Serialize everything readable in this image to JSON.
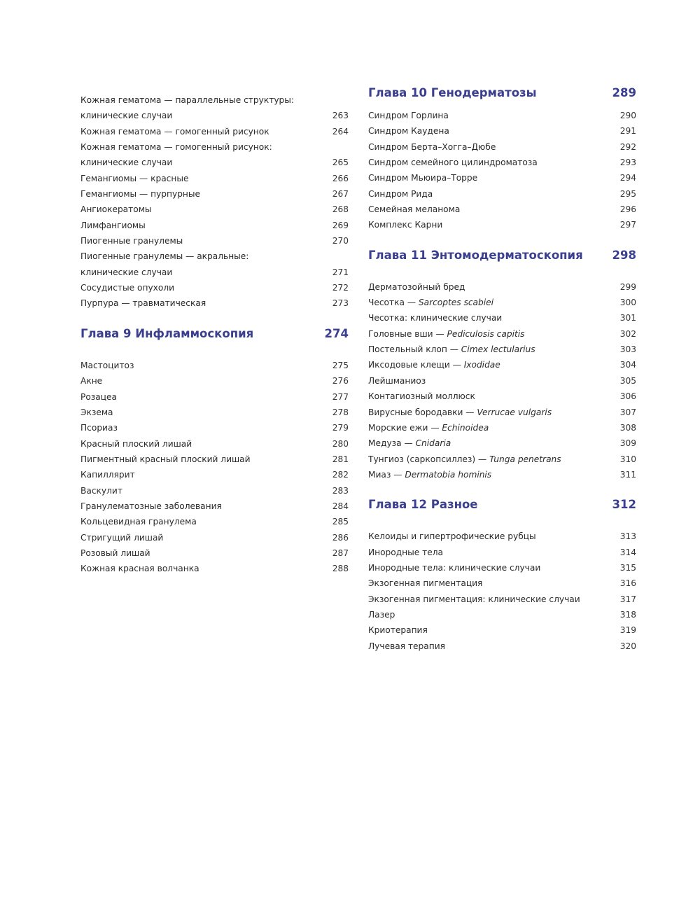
{
  "colors": {
    "heading": "#3b3f8f",
    "text": "#2a2a2a"
  },
  "columns": [
    {
      "sections": [
        {
          "heading": null,
          "entries": [
            {
              "text": "Кожная гематома — параллельные структуры:",
              "italic": "",
              "page": ""
            },
            {
              "text": "клинические случаи",
              "italic": "",
              "page": "263"
            },
            {
              "text": "Кожная гематома — гомогенный рисунок",
              "italic": "",
              "page": "264"
            },
            {
              "text": "Кожная гематома — гомогенный рисунок:",
              "italic": "",
              "page": ""
            },
            {
              "text": "клинические случаи",
              "italic": "",
              "page": "265"
            },
            {
              "text": "Гемангиомы — красные",
              "italic": "",
              "page": "266"
            },
            {
              "text": "Гемангиомы — пурпурные",
              "italic": "",
              "page": "267"
            },
            {
              "text": "Ангиокератомы",
              "italic": "",
              "page": "268"
            },
            {
              "text": "Лимфангиомы",
              "italic": "",
              "page": "269"
            },
            {
              "text": "Пиогенные гранулемы",
              "italic": "",
              "page": "270"
            },
            {
              "text": "Пиогенные гранулемы — акральные:",
              "italic": "",
              "page": ""
            },
            {
              "text": "клинические случаи",
              "italic": "",
              "page": "271"
            },
            {
              "text": "Сосудистые опухоли",
              "italic": "",
              "page": "272"
            },
            {
              "text": "Пурпура — травматическая",
              "italic": "",
              "page": "273"
            }
          ]
        },
        {
          "heading": {
            "title": "Глава 9  Инфламмоскопия",
            "page": "274"
          },
          "entries": [
            {
              "text": "Мастоцитоз",
              "italic": "",
              "page": "275"
            },
            {
              "text": "Акне",
              "italic": "",
              "page": "276"
            },
            {
              "text": "Розацеа",
              "italic": "",
              "page": "277"
            },
            {
              "text": "Экзема",
              "italic": "",
              "page": "278"
            },
            {
              "text": "Псориаз",
              "italic": "",
              "page": "279"
            },
            {
              "text": "Красный плоский лишай",
              "italic": "",
              "page": "280"
            },
            {
              "text": "Пигментный красный плоский лишай",
              "italic": "",
              "page": "281"
            },
            {
              "text": "Капиллярит",
              "italic": "",
              "page": "282"
            },
            {
              "text": "Васкулит",
              "italic": "",
              "page": "283"
            },
            {
              "text": "Гранулематозные заболевания",
              "italic": "",
              "page": "284"
            },
            {
              "text": "Кольцевидная гранулема",
              "italic": "",
              "page": "285"
            },
            {
              "text": "Стригущий лишай",
              "italic": "",
              "page": "286"
            },
            {
              "text": "Розовый лишай",
              "italic": "",
              "page": "287"
            },
            {
              "text": "Кожная красная волчанка",
              "italic": "",
              "page": "288"
            }
          ]
        }
      ]
    },
    {
      "sections": [
        {
          "heading": {
            "title": "Глава 10  Генодерматозы",
            "page": "289"
          },
          "entries": [
            {
              "text": "Синдром Горлина",
              "italic": "",
              "page": "290"
            },
            {
              "text": "Синдром Каудена",
              "italic": "",
              "page": "291"
            },
            {
              "text": "Синдром Берта–Хогга–Дюбе",
              "italic": "",
              "page": "292"
            },
            {
              "text": "Синдром семейного цилиндроматоза",
              "italic": "",
              "page": "293"
            },
            {
              "text": "Синдром Мьюира–Торре",
              "italic": "",
              "page": "294"
            },
            {
              "text": "Синдром Рида",
              "italic": "",
              "page": "295"
            },
            {
              "text": "Семейная меланома",
              "italic": "",
              "page": "296"
            },
            {
              "text": "Комплекс Карни",
              "italic": "",
              "page": "297"
            }
          ]
        },
        {
          "heading": {
            "title": "Глава 11  Энтомодерматоскопия",
            "page": "298"
          },
          "entries": [
            {
              "text": "Дерматозойный бред",
              "italic": "",
              "page": "299"
            },
            {
              "text": "Чесотка — ",
              "italic": "Sarcoptes scabiei",
              "page": "300"
            },
            {
              "text": "Чесотка: клинические случаи",
              "italic": "",
              "page": "301"
            },
            {
              "text": "Головные вши — ",
              "italic": "Pediculosis capitis",
              "page": "302"
            },
            {
              "text": "Постельный клоп — ",
              "italic": "Cimex lectularius",
              "page": "303"
            },
            {
              "text": "Иксодовые клещи — ",
              "italic": "Ixodidae",
              "page": "304"
            },
            {
              "text": "Лейшманиоз",
              "italic": "",
              "page": "305"
            },
            {
              "text": "Контагиозный моллюск",
              "italic": "",
              "page": "306"
            },
            {
              "text": "Вирусные бородавки  — ",
              "italic": "Verrucae vulgaris",
              "page": "307"
            },
            {
              "text": "Морские ежи — ",
              "italic": "Echinoidea",
              "page": "308"
            },
            {
              "text": "Медуза —  ",
              "italic": "Cnidaria",
              "page": "309"
            },
            {
              "text": "Тунгиоз (саркопсиллез) — ",
              "italic": "Tunga penetrans",
              "page": "310"
            },
            {
              "text": "Миаз — ",
              "italic": "Dermatobia hominis",
              "page": "311"
            }
          ]
        },
        {
          "heading": {
            "title": "Глава 12  Разное",
            "page": "312"
          },
          "entries": [
            {
              "text": "Келоиды и гипертрофические рубцы",
              "italic": "",
              "page": "313"
            },
            {
              "text": "Инородные тела",
              "italic": "",
              "page": "314"
            },
            {
              "text": "Инородные тела: клинические случаи",
              "italic": "",
              "page": "315"
            },
            {
              "text": "Экзогенная пигментация",
              "italic": "",
              "page": "316"
            },
            {
              "text": "Экзогенная пигментация: клинические случаи",
              "italic": "",
              "page": "317"
            },
            {
              "text": "Лазер",
              "italic": "",
              "page": "318"
            },
            {
              "text": "Криотерапия",
              "italic": "",
              "page": "319"
            },
            {
              "text": "Лучевая терапия",
              "italic": "",
              "page": "320"
            }
          ]
        }
      ]
    }
  ]
}
